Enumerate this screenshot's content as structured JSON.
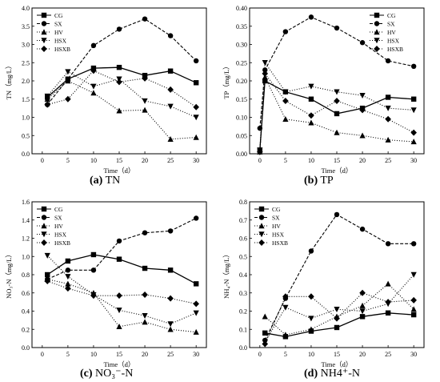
{
  "chart_data": [
    {
      "type": "line",
      "panel_letter": "(a)",
      "panel_name": "TN",
      "ylabel": "TN（mg/L）",
      "xlabel": "Time（d）",
      "x": [
        1,
        5,
        10,
        15,
        20,
        25,
        30
      ],
      "xticks": [
        0,
        5,
        10,
        15,
        20,
        25,
        30
      ],
      "xlim": [
        -2,
        32
      ],
      "ylim": [
        0,
        4.0
      ],
      "yticks": [
        0,
        0.5,
        1.0,
        1.5,
        2.0,
        2.5,
        3.0,
        3.5,
        4.0
      ],
      "ytick_labels": [
        "0.0",
        "0.5",
        "1.0",
        "1.5",
        "2.0",
        "2.5",
        "3.0",
        "3.5",
        "4.0"
      ],
      "legend_position": "top-left",
      "series": [
        {
          "name": "CG",
          "style": "solid",
          "marker": "square",
          "values": [
            1.55,
            2.05,
            2.35,
            2.37,
            2.15,
            2.27,
            1.95
          ]
        },
        {
          "name": "SX",
          "style": "dashed",
          "marker": "circle",
          "values": [
            1.35,
            2.05,
            2.97,
            3.42,
            3.7,
            3.24,
            2.55
          ]
        },
        {
          "name": "HV",
          "style": "dotted",
          "marker": "triangle-up",
          "values": [
            1.5,
            2.0,
            1.67,
            1.18,
            1.2,
            0.4,
            0.45
          ]
        },
        {
          "name": "HSX",
          "style": "dotted",
          "marker": "triangle-down",
          "values": [
            1.58,
            2.25,
            1.85,
            2.05,
            1.45,
            1.3,
            1.0
          ]
        },
        {
          "name": "HSXB",
          "style": "dotted",
          "marker": "diamond",
          "values": [
            1.35,
            1.5,
            2.28,
            1.97,
            2.07,
            1.76,
            1.28
          ]
        }
      ]
    },
    {
      "type": "line",
      "panel_letter": "(b)",
      "panel_name": "TP",
      "ylabel": "TP（mg/L）",
      "xlabel": "Time（d）",
      "x": [
        0,
        1,
        5,
        10,
        15,
        20,
        25,
        30
      ],
      "xticks": [
        0,
        5,
        10,
        15,
        20,
        25,
        30
      ],
      "xlim": [
        -2,
        32
      ],
      "ylim": [
        0,
        0.4
      ],
      "yticks": [
        0,
        0.05,
        0.1,
        0.15,
        0.2,
        0.25,
        0.3,
        0.35,
        0.4
      ],
      "ytick_labels": [
        "0.00",
        "0.05",
        "0.10",
        "0.15",
        "0.20",
        "0.25",
        "0.30",
        "0.35",
        "0.40"
      ],
      "legend_position": "top-right",
      "series": [
        {
          "name": "CG",
          "style": "solid",
          "marker": "square",
          "values": [
            0.01,
            0.2,
            0.17,
            0.15,
            0.11,
            0.125,
            0.155,
            0.15
          ]
        },
        {
          "name": "SX",
          "style": "dashed",
          "marker": "circle",
          "values": [
            0.07,
            0.23,
            0.335,
            0.375,
            0.345,
            0.305,
            0.255,
            0.24
          ]
        },
        {
          "name": "HV",
          "style": "dotted",
          "marker": "triangle-up",
          "values": [
            0.005,
            0.21,
            0.095,
            0.085,
            0.058,
            0.05,
            0.038,
            0.033
          ]
        },
        {
          "name": "HSX",
          "style": "dotted",
          "marker": "triangle-down",
          "values": [
            0.01,
            0.25,
            0.17,
            0.185,
            0.17,
            0.16,
            0.125,
            0.12
          ]
        },
        {
          "name": "HSXB",
          "style": "dotted",
          "marker": "diamond",
          "values": [
            0.005,
            0.22,
            0.145,
            0.105,
            0.145,
            0.12,
            0.095,
            0.058
          ]
        }
      ]
    },
    {
      "type": "line",
      "panel_letter": "(c)",
      "panel_name": "NO₃⁻-N",
      "ylabel": "NO₃-N（mg/L）",
      "xlabel": "Time（d）",
      "x": [
        1,
        5,
        10,
        15,
        20,
        25,
        30
      ],
      "xticks": [
        0,
        5,
        10,
        15,
        20,
        25,
        30
      ],
      "xlim": [
        -2,
        32
      ],
      "ylim": [
        0,
        1.6
      ],
      "yticks": [
        0,
        0.2,
        0.4,
        0.6,
        0.8,
        1.0,
        1.2,
        1.4,
        1.6
      ],
      "ytick_labels": [
        "0.0",
        "0.2",
        "0.4",
        "0.6",
        "0.8",
        "1.0",
        "1.2",
        "1.4",
        "1.6"
      ],
      "legend_position": "top-left",
      "series": [
        {
          "name": "CG",
          "style": "solid",
          "marker": "square",
          "values": [
            0.8,
            0.95,
            1.02,
            0.97,
            0.87,
            0.85,
            0.7
          ]
        },
        {
          "name": "SX",
          "style": "dashed",
          "marker": "circle",
          "values": [
            0.75,
            0.85,
            0.85,
            1.17,
            1.26,
            1.28,
            1.42
          ]
        },
        {
          "name": "HV",
          "style": "dotted",
          "marker": "triangle-up",
          "values": [
            0.75,
            0.7,
            0.6,
            0.23,
            0.28,
            0.2,
            0.17
          ]
        },
        {
          "name": "HSX",
          "style": "dotted",
          "marker": "triangle-down",
          "values": [
            1.01,
            0.78,
            0.58,
            0.41,
            0.35,
            0.26,
            0.38
          ]
        },
        {
          "name": "HSXB",
          "style": "dotted",
          "marker": "diamond",
          "values": [
            0.73,
            0.65,
            0.57,
            0.57,
            0.58,
            0.54,
            0.48
          ]
        }
      ]
    },
    {
      "type": "line",
      "panel_letter": "(d)",
      "panel_name": "NH4⁺-N",
      "ylabel": "NH₄-N（mg/L）",
      "xlabel": "Time（d）",
      "x": [
        1,
        5,
        10,
        15,
        20,
        25,
        30
      ],
      "xticks": [
        0,
        5,
        10,
        15,
        20,
        25,
        30
      ],
      "xlim": [
        -2,
        32
      ],
      "ylim": [
        0,
        0.8
      ],
      "yticks": [
        0,
        0.1,
        0.2,
        0.3,
        0.4,
        0.5,
        0.6,
        0.7,
        0.8
      ],
      "ytick_labels": [
        "0.0",
        "0.1",
        "0.2",
        "0.3",
        "0.4",
        "0.5",
        "0.6",
        "0.7",
        "0.8"
      ],
      "legend_position": "top-left",
      "series": [
        {
          "name": "CG",
          "style": "solid",
          "marker": "square",
          "values": [
            0.08,
            0.06,
            0.09,
            0.11,
            0.17,
            0.19,
            0.18
          ]
        },
        {
          "name": "SX",
          "style": "dashed",
          "marker": "circle",
          "values": [
            0.04,
            0.27,
            0.53,
            0.73,
            0.65,
            0.57,
            0.57
          ]
        },
        {
          "name": "HV",
          "style": "dotted",
          "marker": "triangle-up",
          "values": [
            0.17,
            0.07,
            0.1,
            0.17,
            0.23,
            0.35,
            0.21
          ]
        },
        {
          "name": "HSX",
          "style": "dotted",
          "marker": "triangle-down",
          "values": [
            0.03,
            0.22,
            0.16,
            0.21,
            0.2,
            0.24,
            0.4
          ]
        },
        {
          "name": "HSXB",
          "style": "dotted",
          "marker": "diamond",
          "values": [
            0.02,
            0.28,
            0.28,
            0.16,
            0.3,
            0.25,
            0.26
          ]
        }
      ]
    }
  ]
}
